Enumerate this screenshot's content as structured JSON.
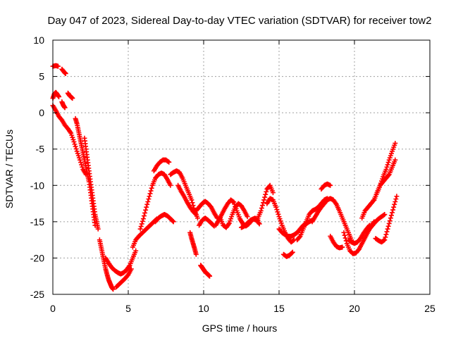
{
  "chart_data": {
    "type": "scatter",
    "title": "Day 047 of 2023, Sidereal Day-to-day VTEC variation (SDTVAR) for receiver tow2",
    "xlabel": "GPS time / hours",
    "ylabel": "SDTVAR / TECUs",
    "xlim": [
      0,
      25
    ],
    "ylim": [
      -25,
      10
    ],
    "xticks": [
      0,
      5,
      10,
      15,
      20,
      25
    ],
    "yticks": [
      10,
      5,
      0,
      -5,
      -10,
      -15,
      -20,
      -25
    ],
    "grid": true,
    "marker": "+",
    "series": [
      {
        "name": "SDTVAR",
        "color": "#ff0000",
        "tracks": [
          {
            "x": [
              0.0,
              0.2,
              0.35
            ],
            "y": [
              6.4,
              6.5,
              6.4
            ]
          },
          {
            "x": [
              0.6,
              0.75,
              0.85
            ],
            "y": [
              6.0,
              5.6,
              5.4
            ]
          },
          {
            "x": [
              0.0,
              0.1,
              0.2,
              0.3,
              0.4
            ],
            "y": [
              2.0,
              2.6,
              2.8,
              2.5,
              2.2
            ]
          },
          {
            "x": [
              0.6,
              0.7,
              0.8
            ],
            "y": [
              1.5,
              1.0,
              0.7
            ]
          },
          {
            "x": [
              1.0,
              1.1,
              1.2,
              1.3
            ],
            "y": [
              2.7,
              2.4,
              2.2,
              2.0
            ]
          },
          {
            "x": [
              0.0,
              0.2,
              0.4,
              0.6,
              0.8,
              1.0,
              1.2,
              1.4,
              1.6,
              1.8,
              2.0,
              2.2
            ],
            "y": [
              1.0,
              0.3,
              -0.5,
              -1.0,
              -1.7,
              -2.2,
              -2.8,
              -4.0,
              -5.3,
              -6.5,
              -7.8,
              -8.5
            ]
          },
          {
            "x": [
              1.5,
              1.6,
              1.7,
              1.8,
              1.9,
              2.0,
              2.1,
              2.2,
              2.3,
              2.4,
              2.5,
              2.6,
              2.7,
              2.8
            ],
            "y": [
              -0.8,
              -1.5,
              -2.5,
              -3.5,
              -4.5,
              -5.5,
              -6.5,
              -7.5,
              -8.5,
              -9.5,
              -11,
              -12.5,
              -14,
              -15.5
            ]
          },
          {
            "x": [
              2.1,
              2.2,
              2.3,
              2.4,
              2.5,
              2.6,
              2.7,
              2.8,
              2.9,
              3.0
            ],
            "y": [
              -3.5,
              -5.0,
              -6.5,
              -8.0,
              -9.5,
              -11,
              -12.5,
              -14,
              -15,
              -16
            ]
          },
          {
            "x": [
              3.1,
              3.2,
              3.3,
              3.4,
              3.5,
              3.6,
              3.7,
              3.8,
              3.9,
              4.0
            ],
            "y": [
              -17.5,
              -18.5,
              -19.5,
              -20.5,
              -21.5,
              -22.3,
              -23,
              -23.5,
              -24,
              -24.3
            ]
          },
          {
            "x": [
              3.5,
              3.7,
              3.9,
              4.1,
              4.3,
              4.5,
              4.7,
              4.9,
              5.1,
              5.3,
              5.5
            ],
            "y": [
              -20,
              -20.7,
              -21.3,
              -21.7,
              -22,
              -22.2,
              -22,
              -21.6,
              -21,
              -20,
              -19
            ]
          },
          {
            "x": [
              4.2,
              4.4,
              4.6,
              4.8,
              5.0,
              5.2
            ],
            "y": [
              -24,
              -23.6,
              -23.2,
              -22.8,
              -22.3,
              -21.5
            ]
          },
          {
            "x": [
              5.3,
              5.5,
              5.7,
              5.9,
              6.1,
              6.3,
              6.5,
              6.7,
              6.9
            ],
            "y": [
              -18.5,
              -17.5,
              -17,
              -16.6,
              -16.2,
              -15.8,
              -15.4,
              -15,
              -14.6
            ]
          },
          {
            "x": [
              5.8,
              6.0,
              6.2,
              6.4,
              6.6,
              6.8,
              7.0,
              7.2,
              7.4,
              7.6,
              7.8
            ],
            "y": [
              -16,
              -14.6,
              -13,
              -11.5,
              -10,
              -9,
              -8.5,
              -8.3,
              -8.5,
              -9.2,
              -10
            ]
          },
          {
            "x": [
              6.7,
              6.9,
              7.1,
              7.3,
              7.5,
              7.7
            ],
            "y": [
              -8,
              -7.3,
              -6.8,
              -6.5,
              -6.5,
              -6.8
            ]
          },
          {
            "x": [
              7.8,
              8.0,
              8.2,
              8.4,
              8.6,
              8.8,
              9.0,
              9.2,
              9.4,
              9.6
            ],
            "y": [
              -8.5,
              -8.2,
              -8,
              -8.2,
              -9,
              -10,
              -11,
              -12,
              -13.5,
              -14.5
            ]
          },
          {
            "x": [
              6.8,
              7.0,
              7.2,
              7.4,
              7.6,
              7.8,
              8.0
            ],
            "y": [
              -15,
              -14.5,
              -14.2,
              -14,
              -14.2,
              -14.6,
              -15
            ]
          },
          {
            "x": [
              8.3,
              8.5,
              8.7,
              8.9,
              9.1,
              9.3,
              9.5
            ],
            "y": [
              -10,
              -10.8,
              -11.5,
              -12.3,
              -13,
              -13.6,
              -14
            ]
          },
          {
            "x": [
              9.1,
              9.2,
              9.3,
              9.4,
              9.5
            ],
            "y": [
              -16.5,
              -17.3,
              -18,
              -18.7,
              -19.5
            ]
          },
          {
            "x": [
              9.8,
              9.9,
              10.0,
              10.1,
              10.2,
              10.3,
              10.4
            ],
            "y": [
              -21,
              -21.3,
              -21.6,
              -21.9,
              -22.1,
              -22.3,
              -22.5
            ]
          },
          {
            "x": [
              9.7,
              9.9,
              10.1,
              10.3,
              10.5,
              10.7
            ],
            "y": [
              -15.5,
              -14.8,
              -14.5,
              -14.8,
              -15.2,
              -15.6
            ]
          },
          {
            "x": [
              9.5,
              9.7,
              9.9,
              10.1,
              10.3,
              10.5,
              10.7,
              10.9
            ],
            "y": [
              -13.5,
              -13,
              -12.5,
              -12.2,
              -12.5,
              -13,
              -13.8,
              -14.5
            ]
          },
          {
            "x": [
              10.8,
              11.0,
              11.2,
              11.4,
              11.6,
              11.8,
              12.0,
              12.2,
              12.4,
              12.6,
              12.8,
              13.0,
              13.2,
              13.4,
              13.6
            ],
            "y": [
              -15.5,
              -14.8,
              -14,
              -13.2,
              -12.5,
              -12,
              -12.3,
              -13.5,
              -14.6,
              -15.3,
              -15.6,
              -15.3,
              -14.8,
              -14.5,
              -14.8
            ]
          },
          {
            "x": [
              11.1,
              11.3,
              11.5,
              11.7,
              11.9,
              12.1,
              12.3,
              12.5,
              12.7,
              12.9
            ],
            "y": [
              -14.5,
              -15.5,
              -15.8,
              -15.2,
              -14,
              -13,
              -12.5,
              -12.8,
              -13.5,
              -14.3
            ]
          },
          {
            "x": [
              12.5,
              12.7,
              12.9,
              13.1,
              13.3,
              13.5,
              13.7
            ],
            "y": [
              -15.8,
              -15.6,
              -15.2,
              -14.8,
              -14.6,
              -14.8,
              -15.3
            ]
          },
          {
            "x": [
              13.6,
              13.8,
              14.0,
              14.2,
              14.4,
              14.6
            ],
            "y": [
              -14.5,
              -13.5,
              -12,
              -10.5,
              -10,
              -11
            ]
          },
          {
            "x": [
              14.2,
              14.4,
              14.6,
              14.8,
              15.0,
              15.2,
              15.4,
              15.6,
              15.8,
              16.0
            ],
            "y": [
              -12.5,
              -11.8,
              -12,
              -13,
              -14.3,
              -15.5,
              -16.5,
              -17.3,
              -17.8,
              -17.5
            ]
          },
          {
            "x": [
              15.0,
              15.2,
              15.4,
              15.6,
              15.8,
              16.0,
              16.2,
              16.4,
              16.6,
              16.8,
              17.0,
              17.2
            ],
            "y": [
              -16,
              -16.5,
              -16.8,
              -17,
              -17,
              -16.8,
              -16.5,
              -16,
              -15.5,
              -15.3,
              -15,
              -14.8
            ]
          },
          {
            "x": [
              15.3,
              15.5,
              15.7,
              15.9
            ],
            "y": [
              -19.5,
              -19.8,
              -19.6,
              -19.2
            ]
          },
          {
            "x": [
              16.2,
              16.4,
              16.6,
              16.8,
              17.0,
              17.2,
              17.4,
              17.6,
              17.8,
              18.0,
              18.2
            ],
            "y": [
              -17.5,
              -17,
              -16,
              -15,
              -14,
              -13.5,
              -13.3,
              -13,
              -12.5,
              -12,
              -11.8
            ]
          },
          {
            "x": [
              17.2,
              17.4,
              17.6,
              17.8,
              18.0,
              18.2,
              18.4,
              18.6,
              18.8,
              19.0,
              19.2,
              19.4,
              19.6,
              19.8
            ],
            "y": [
              -15,
              -14.3,
              -13.6,
              -13,
              -12.5,
              -12,
              -11.8,
              -12,
              -12.6,
              -13.5,
              -14.5,
              -15.5,
              -16.5,
              -17.5
            ]
          },
          {
            "x": [
              17.8,
              18.0,
              18.2,
              18.4
            ],
            "y": [
              -10.5,
              -10,
              -9.8,
              -10
            ]
          },
          {
            "x": [
              18.4,
              18.6,
              18.8,
              19.0,
              19.2
            ],
            "y": [
              -17,
              -17.8,
              -18.4,
              -18.6,
              -18.5
            ]
          },
          {
            "x": [
              19.3,
              19.5,
              19.7,
              19.9,
              20.1,
              20.3,
              20.5,
              20.7,
              20.9,
              21.1,
              21.3
            ],
            "y": [
              -16.5,
              -18,
              -19,
              -19.4,
              -19.3,
              -18.8,
              -18,
              -17.2,
              -16.4,
              -15.6,
              -15
            ]
          },
          {
            "x": [
              19.6,
              19.8,
              20.0,
              20.2,
              20.4,
              20.6,
              20.8,
              21.0
            ],
            "y": [
              -17.5,
              -17.8,
              -18,
              -17.8,
              -17.3,
              -16.6,
              -16,
              -15.5
            ]
          },
          {
            "x": [
              20.5,
              20.7,
              20.9,
              21.1,
              21.3,
              21.5,
              21.7,
              21.9,
              22.1,
              22.3,
              22.5,
              22.7
            ],
            "y": [
              -14.5,
              -13.5,
              -13,
              -12.5,
              -12,
              -11,
              -10,
              -8.8,
              -7.8,
              -6.5,
              -5.3,
              -4.2
            ]
          },
          {
            "x": [
              21.3,
              21.5,
              21.7,
              21.9,
              22.1,
              22.3,
              22.5,
              22.7
            ],
            "y": [
              -12,
              -11,
              -10,
              -9.5,
              -9,
              -8.5,
              -7.5,
              -6.5
            ]
          },
          {
            "x": [
              21.4,
              21.6,
              21.8,
              22.0,
              22.2,
              22.4,
              22.6,
              22.8
            ],
            "y": [
              -17.3,
              -17.6,
              -17.8,
              -17.5,
              -16,
              -14.5,
              -13,
              -11.5
            ]
          },
          {
            "x": [
              20.8,
              21.0,
              21.2,
              21.4,
              21.6,
              21.8,
              22.0
            ],
            "y": [
              -16.5,
              -16,
              -15.5,
              -15,
              -14.6,
              -14.3,
              -14
            ]
          }
        ]
      }
    ]
  }
}
